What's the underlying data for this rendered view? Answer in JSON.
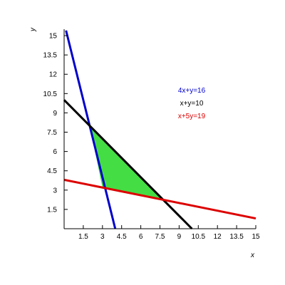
{
  "chart_data": {
    "type": "line",
    "xlabel": "x",
    "ylabel": "y",
    "xlim": [
      0,
      15
    ],
    "ylim": [
      0,
      15.5
    ],
    "x_ticks": [
      1.5,
      3,
      4.5,
      6,
      7.5,
      9,
      10.5,
      12,
      13.5,
      15
    ],
    "x_tick_labels": [
      "1.5",
      "3",
      "4.5",
      "6",
      "7.5",
      "9",
      "10.5",
      "12",
      "13.5",
      "15"
    ],
    "y_ticks": [
      1.5,
      3,
      4.5,
      6,
      7.5,
      9,
      10.5,
      12,
      13.5,
      15
    ],
    "y_tick_labels": [
      "1.5",
      "3",
      "4.5",
      "6",
      "7.5",
      "9",
      "10.5",
      "12",
      "13.5",
      "15"
    ],
    "legend_position": "right-top",
    "series": [
      {
        "name": "4x+y=16",
        "color": "#0000cc",
        "points": [
          [
            0.15,
            15.4
          ],
          [
            4.0,
            0.0
          ]
        ]
      },
      {
        "name": "x+y=10",
        "color": "#000000",
        "points": [
          [
            0.0,
            10.0
          ],
          [
            10.0,
            0.0
          ]
        ]
      },
      {
        "name": "x+5y=19",
        "color": "#dd0000",
        "points": [
          [
            0.0,
            3.8
          ],
          [
            15.0,
            0.8
          ]
        ]
      }
    ],
    "shaded_region": {
      "color": "#44dd44",
      "vertices": [
        [
          2.0,
          8.0
        ],
        [
          7.75,
          2.25
        ],
        [
          3.0,
          3.2
        ]
      ]
    }
  }
}
